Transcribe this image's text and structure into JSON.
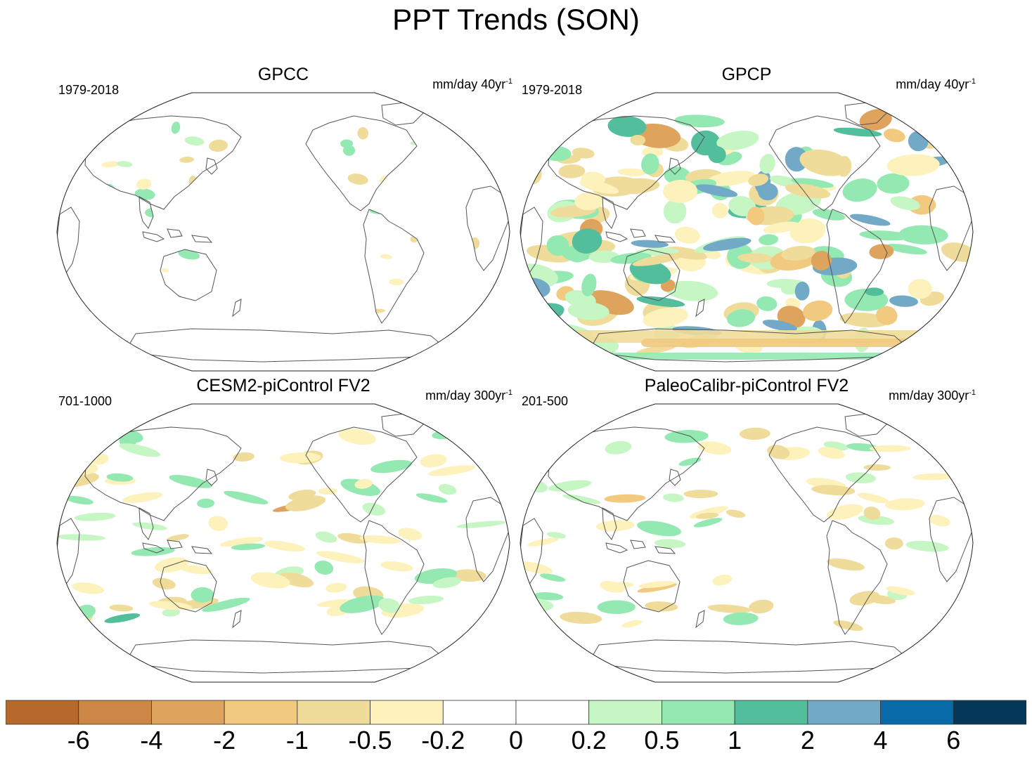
{
  "title": "PPT Trends (SON)",
  "panels": [
    {
      "title": "GPCC",
      "period": "1979-2018",
      "units": "mm/day 40yr",
      "units_exp": "-1"
    },
    {
      "title": "GPCP",
      "period": "1979-2018",
      "units": "mm/day 40yr",
      "units_exp": "-1"
    },
    {
      "title": "CESM2-piControl FV2",
      "period": "701-1000",
      "units": "mm/day 300yr",
      "units_exp": "-1"
    },
    {
      "title": "PaleoCalibr-piControl FV2",
      "period": "201-500",
      "units": "mm/day 300yr",
      "units_exp": "-1"
    }
  ],
  "colorbar": {
    "colors": [
      "#b5692a",
      "#cc8645",
      "#dea45e",
      "#f1c97f",
      "#f0dc9a",
      "#fdf2bc",
      "#ffffff",
      "#ffffff",
      "#c7f6c5",
      "#93e9b1",
      "#52be9c",
      "#72a9c6",
      "#0a6bab",
      "#043758"
    ],
    "labels": [
      "-6",
      "-4",
      "-2",
      "-1",
      "-0.5",
      "-0.2",
      "0",
      "0.2",
      "0.5",
      "1",
      "2",
      "4",
      "6"
    ]
  },
  "chart_data": {
    "type": "map",
    "title": "PPT Trends (SON)",
    "projection": "Robinson, Pacific-centered",
    "variable": "Precipitation trend",
    "contour_levels": [
      -6,
      -4,
      -2,
      -1,
      -0.5,
      -0.2,
      0,
      0.2,
      0.5,
      1,
      2,
      4,
      6
    ],
    "panels": [
      {
        "name": "GPCC",
        "period": "1979-2018",
        "units": "mm/day 40yr-1",
        "coverage": "land only"
      },
      {
        "name": "GPCP",
        "period": "1979-2018",
        "units": "mm/day 40yr-1",
        "coverage": "global"
      },
      {
        "name": "CESM2-piControl FV2",
        "period": "701-1000",
        "units": "mm/day 300yr-1",
        "coverage": "global"
      },
      {
        "name": "PaleoCalibr-piControl FV2",
        "period": "201-500",
        "units": "mm/day 300yr-1",
        "coverage": "global"
      }
    ]
  }
}
